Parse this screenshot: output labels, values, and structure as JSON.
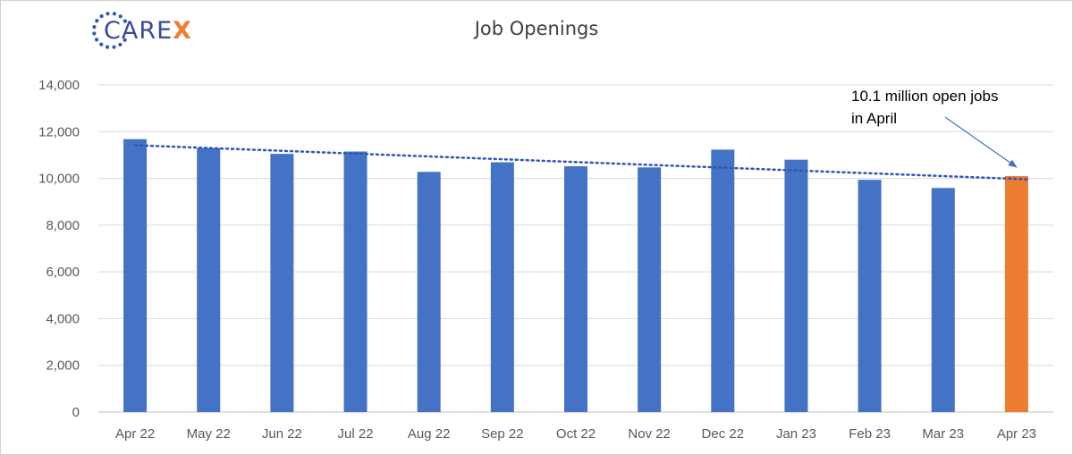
{
  "logo": {
    "base": "CARE",
    "accent": "X",
    "dot_color": "#2f56b4",
    "text_color": "#3a4a9a",
    "accent_color": "#ef7d32"
  },
  "chart_data": {
    "type": "bar",
    "title": "Job Openings",
    "categories": [
      "Apr 22",
      "May 22",
      "Jun 22",
      "Jul 22",
      "Aug 22",
      "Sep 22",
      "Oct 22",
      "Nov 22",
      "Dec 22",
      "Jan 23",
      "Feb 23",
      "Mar 23",
      "Apr 23"
    ],
    "values": [
      11680,
      11300,
      11050,
      11150,
      10280,
      10690,
      10520,
      10470,
      11230,
      10800,
      9940,
      9590,
      10100
    ],
    "ylim": [
      0,
      14000
    ],
    "yticks": [
      "0",
      "2,000",
      "4,000",
      "6,000",
      "8,000",
      "10,000",
      "12,000",
      "14,000"
    ],
    "xlabel": "",
    "ylabel": "",
    "grid": true,
    "bar_color": "#4472c4",
    "highlight_color": "#ed7d31",
    "highlight_index": 12,
    "trendline": {
      "style": "dotted",
      "color": "#2f56b4",
      "start": 11420,
      "end": 9960
    },
    "annotation": {
      "lines": [
        "10.1 million open jobs",
        "in April"
      ],
      "target_category": "Apr 23",
      "arrow_color": "#4472c4"
    }
  }
}
